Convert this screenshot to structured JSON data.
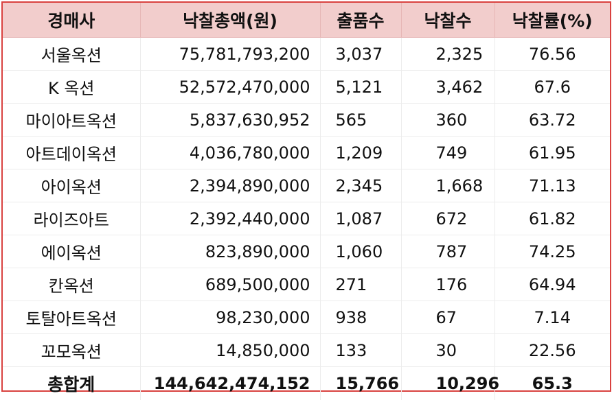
{
  "table": {
    "headers": [
      "경매사",
      "낙찰총액(원)",
      "출품수",
      "낙찰수",
      "낙찰률(%)"
    ],
    "rows": [
      [
        "서울옥션",
        "75,781,793,200",
        "3,037",
        "2,325",
        "76.56"
      ],
      [
        "K 옥션",
        "52,572,470,000",
        "5,121",
        "3,462",
        "67.6"
      ],
      [
        "마이아트옥션",
        "5,837,630,952",
        "565",
        "360",
        "63.72"
      ],
      [
        "아트데이옥션",
        "4,036,780,000",
        "1,209",
        "749",
        "61.95"
      ],
      [
        "아이옥션",
        "2,394,890,000",
        "2,345",
        "1,668",
        "71.13"
      ],
      [
        "라이즈아트",
        "2,392,440,000",
        "1,087",
        "672",
        "61.82"
      ],
      [
        "에이옥션",
        "823,890,000",
        "1,060",
        "787",
        "74.25"
      ],
      [
        "칸옥션",
        "689,500,000",
        "271",
        "176",
        "64.94"
      ],
      [
        "토탈아트옥션",
        "98,230,000",
        "938",
        "67",
        "7.14"
      ],
      [
        "꼬모옥션",
        "14,850,000",
        "133",
        "30",
        "22.56"
      ]
    ],
    "total": [
      "총합계",
      "144,642,474,152",
      "15,766",
      "10,296",
      "65.3"
    ]
  },
  "colors": {
    "border": "#d9413f",
    "header_bg": "#f2cdcc"
  }
}
